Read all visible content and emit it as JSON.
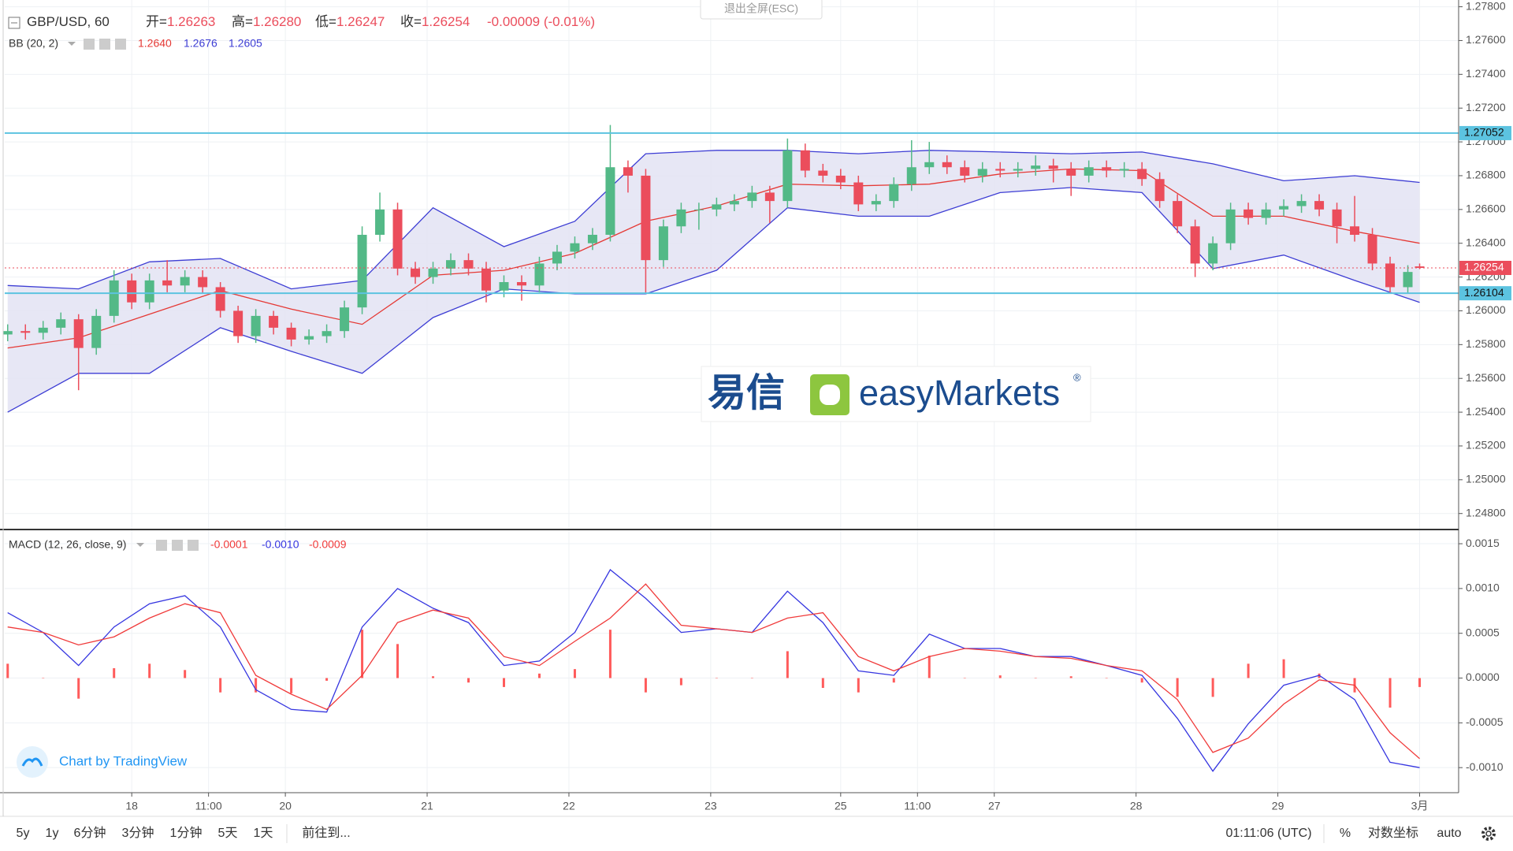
{
  "chart_data": [
    {
      "type": "candlestick",
      "title": "GBP/USD, 60",
      "ohlc_names": [
        "开=",
        "高=",
        "低=",
        "收="
      ],
      "change": "-0.00009 (-0.01%)",
      "up_color": "#53b987",
      "down_color": "#eb4d5c",
      "x": [
        0,
        3,
        6,
        9,
        12,
        15,
        18,
        21,
        24,
        27,
        30,
        33,
        36,
        39,
        42,
        45,
        48,
        51,
        54,
        57,
        60,
        63,
        66,
        69,
        72,
        75,
        78,
        81,
        84,
        87,
        90,
        93,
        96,
        99,
        102,
        105,
        108,
        111,
        114,
        117,
        120,
        123,
        126,
        129,
        132,
        135,
        138,
        141,
        144,
        147,
        150,
        153,
        156,
        159,
        162,
        165,
        168,
        171,
        174,
        177,
        180,
        183,
        186,
        189,
        192,
        195,
        198,
        201,
        204,
        207,
        210,
        213,
        216,
        219,
        222,
        225,
        228,
        231,
        234,
        237,
        239
      ],
      "ohlc": [
        [
          1.2586,
          1.2592,
          1.2582,
          1.2588
        ],
        [
          1.2588,
          1.2592,
          1.2583,
          1.2587
        ],
        [
          1.2587,
          1.2594,
          1.2583,
          1.259
        ],
        [
          1.259,
          1.2599,
          1.2586,
          1.2595
        ],
        [
          1.2595,
          1.2598,
          1.2553,
          1.2578
        ],
        [
          1.2578,
          1.2601,
          1.2574,
          1.2597
        ],
        [
          1.2597,
          1.2624,
          1.2593,
          1.2618
        ],
        [
          1.2618,
          1.2622,
          1.2601,
          1.2605
        ],
        [
          1.2605,
          1.2622,
          1.2601,
          1.2618
        ],
        [
          1.2618,
          1.263,
          1.2611,
          1.2615
        ],
        [
          1.2615,
          1.2624,
          1.2611,
          1.262
        ],
        [
          1.262,
          1.2624,
          1.261,
          1.2614
        ],
        [
          1.2614,
          1.2617,
          1.2596,
          1.26
        ],
        [
          1.26,
          1.2603,
          1.2581,
          1.2585
        ],
        [
          1.2585,
          1.2601,
          1.2581,
          1.2597
        ],
        [
          1.2597,
          1.26,
          1.2586,
          1.259
        ],
        [
          1.259,
          1.2593,
          1.2579,
          1.2583
        ],
        [
          1.2583,
          1.2589,
          1.258,
          1.2585
        ],
        [
          1.2585,
          1.2592,
          1.2581,
          1.2588
        ],
        [
          1.2588,
          1.2606,
          1.2584,
          1.2602
        ],
        [
          1.2602,
          1.265,
          1.2598,
          1.2645
        ],
        [
          1.2645,
          1.267,
          1.2641,
          1.266
        ],
        [
          1.266,
          1.2664,
          1.2621,
          1.2625
        ],
        [
          1.2625,
          1.2629,
          1.2616,
          1.262
        ],
        [
          1.262,
          1.2629,
          1.2616,
          1.2625
        ],
        [
          1.2625,
          1.2634,
          1.2621,
          1.263
        ],
        [
          1.263,
          1.2634,
          1.2621,
          1.2625
        ],
        [
          1.2625,
          1.2629,
          1.2605,
          1.2612
        ],
        [
          1.2612,
          1.2621,
          1.2608,
          1.2617
        ],
        [
          1.2617,
          1.2621,
          1.2606,
          1.2615
        ],
        [
          1.2615,
          1.2632,
          1.2611,
          1.2628
        ],
        [
          1.2628,
          1.2639,
          1.2624,
          1.2635
        ],
        [
          1.2635,
          1.2644,
          1.2631,
          1.264
        ],
        [
          1.264,
          1.2649,
          1.2636,
          1.2645
        ],
        [
          1.2645,
          1.271,
          1.2641,
          1.2685
        ],
        [
          1.2685,
          1.2689,
          1.267,
          1.268
        ],
        [
          1.268,
          1.2684,
          1.261,
          1.263
        ],
        [
          1.263,
          1.2654,
          1.2626,
          1.265
        ],
        [
          1.265,
          1.2664,
          1.2646,
          1.266
        ],
        [
          1.266,
          1.2664,
          1.2648,
          1.266
        ],
        [
          1.266,
          1.2667,
          1.2656,
          1.2663
        ],
        [
          1.2663,
          1.2669,
          1.2659,
          1.2665
        ],
        [
          1.2665,
          1.2674,
          1.2661,
          1.267
        ],
        [
          1.267,
          1.2674,
          1.2652,
          1.2665
        ],
        [
          1.2665,
          1.2702,
          1.2661,
          1.2695
        ],
        [
          1.2695,
          1.2699,
          1.2679,
          1.2683
        ],
        [
          1.2683,
          1.2687,
          1.2676,
          1.268
        ],
        [
          1.268,
          1.2684,
          1.2672,
          1.2676
        ],
        [
          1.2676,
          1.268,
          1.2659,
          1.2663
        ],
        [
          1.2663,
          1.2669,
          1.2659,
          1.2665
        ],
        [
          1.2665,
          1.2679,
          1.2661,
          1.2675
        ],
        [
          1.2675,
          1.2701,
          1.2671,
          1.2685
        ],
        [
          1.2685,
          1.27,
          1.2681,
          1.2688
        ],
        [
          1.2688,
          1.2692,
          1.2681,
          1.2685
        ],
        [
          1.2685,
          1.2689,
          1.2676,
          1.268
        ],
        [
          1.268,
          1.2688,
          1.2676,
          1.2684
        ],
        [
          1.2684,
          1.2688,
          1.2679,
          1.2683
        ],
        [
          1.2683,
          1.2688,
          1.2679,
          1.2684
        ],
        [
          1.2684,
          1.2692,
          1.268,
          1.2686
        ],
        [
          1.2686,
          1.269,
          1.2676,
          1.2684
        ],
        [
          1.2684,
          1.2688,
          1.2668,
          1.268
        ],
        [
          1.268,
          1.2689,
          1.2676,
          1.2685
        ],
        [
          1.2685,
          1.2689,
          1.2679,
          1.2683
        ],
        [
          1.2683,
          1.2688,
          1.2679,
          1.2684
        ],
        [
          1.2684,
          1.2688,
          1.2674,
          1.2678
        ],
        [
          1.2678,
          1.2682,
          1.2661,
          1.2665
        ],
        [
          1.2665,
          1.2669,
          1.2646,
          1.265
        ],
        [
          1.265,
          1.2654,
          1.262,
          1.2628
        ],
        [
          1.2628,
          1.2644,
          1.2624,
          1.264
        ],
        [
          1.264,
          1.2664,
          1.2636,
          1.266
        ],
        [
          1.266,
          1.2664,
          1.2651,
          1.2655
        ],
        [
          1.2655,
          1.2664,
          1.2651,
          1.266
        ],
        [
          1.266,
          1.2666,
          1.2656,
          1.2662
        ],
        [
          1.2662,
          1.2669,
          1.2658,
          1.2665
        ],
        [
          1.2665,
          1.2669,
          1.2656,
          1.266
        ],
        [
          1.266,
          1.2664,
          1.264,
          1.265
        ],
        [
          1.265,
          1.2668,
          1.2641,
          1.2645
        ],
        [
          1.2645,
          1.2649,
          1.2624,
          1.2628
        ],
        [
          1.2628,
          1.2632,
          1.261,
          1.2614
        ],
        [
          1.2614,
          1.2627,
          1.261,
          1.2623
        ],
        [
          1.26263,
          1.2628,
          1.26247,
          1.26254
        ]
      ],
      "value_labels": {
        "80": {
          "1": "1.26280"
        }
      },
      "bands": {
        "name": "BB (20, 2)",
        "fill": "#e4e4f4",
        "x": [
          0,
          12,
          24,
          36,
          48,
          60,
          72,
          84,
          96,
          108,
          120,
          132,
          144,
          156,
          168,
          180,
          192,
          204,
          216,
          228,
          239
        ],
        "basis": {
          "color": "#e53935",
          "values": [
            1.2578,
            1.2584,
            1.2598,
            1.2612,
            1.2601,
            1.2592,
            1.2621,
            1.2624,
            1.2634,
            1.2653,
            1.2662,
            1.2675,
            1.2674,
            1.2675,
            1.2681,
            1.2684,
            1.2683,
            1.2656,
            1.2656,
            1.2647,
            1.264
          ],
          "value_labels": {
            "20": "1.2640"
          }
        },
        "upper": {
          "color": "#3d3dd4",
          "values": [
            1.2615,
            1.2613,
            1.2629,
            1.2631,
            1.2613,
            1.2618,
            1.2661,
            1.2638,
            1.2653,
            1.2693,
            1.2695,
            1.2695,
            1.2693,
            1.2695,
            1.2694,
            1.2693,
            1.2694,
            1.2687,
            1.2677,
            1.268,
            1.2676
          ]
        },
        "lower": {
          "color": "#3d3dd4",
          "values": [
            1.254,
            1.2563,
            1.2563,
            1.259,
            1.2576,
            1.2563,
            1.2596,
            1.2613,
            1.261,
            1.261,
            1.2624,
            1.2661,
            1.2656,
            1.2656,
            1.267,
            1.2673,
            1.267,
            1.2625,
            1.2633,
            1.2618,
            1.2605
          ]
        }
      },
      "hlines": [
        {
          "value": 1.27052,
          "color": "#5cc3e0"
        },
        {
          "value": 1.26104,
          "color": "#5cc3e0"
        }
      ],
      "last_price_color": "#eb4d5c",
      "xlim": [
        -0.5,
        245.6
      ],
      "ylim": [
        1.2471,
        1.2784
      ],
      "yticks": [
        {
          "value": 1.248,
          "label": "1.24800"
        },
        {
          "value": 1.25,
          "label": "1.25000"
        },
        {
          "value": 1.252,
          "label": "1.25200"
        },
        {
          "value": 1.254,
          "label": "1.25400"
        },
        {
          "value": 1.256,
          "label": "1.25600"
        },
        {
          "value": 1.258,
          "label": "1.25800"
        },
        {
          "value": 1.26,
          "label": "1.26000"
        },
        {
          "value": 1.262,
          "label": "1.26200"
        },
        {
          "value": 1.264,
          "label": "1.26400"
        },
        {
          "value": 1.266,
          "label": "1.26600"
        },
        {
          "value": 1.268,
          "label": "1.26800"
        },
        {
          "value": 1.27,
          "label": "1.27000"
        },
        {
          "value": 1.272,
          "label": "1.27200"
        },
        {
          "value": 1.274,
          "label": "1.27400"
        },
        {
          "value": 1.276,
          "label": "1.27600"
        },
        {
          "value": 1.278,
          "label": "1.27800"
        }
      ],
      "xticks": [
        {
          "value": 21,
          "label": "18"
        },
        {
          "value": 34,
          "label": "11:00"
        },
        {
          "value": 47,
          "label": "20"
        },
        {
          "value": 71,
          "label": "21"
        },
        {
          "value": 95,
          "label": "22"
        },
        {
          "value": 119,
          "label": "23"
        },
        {
          "value": 141,
          "label": "25"
        },
        {
          "value": 154,
          "label": "11:00"
        },
        {
          "value": 167,
          "label": "27"
        },
        {
          "value": 191,
          "label": "28"
        },
        {
          "value": 215,
          "label": "29"
        },
        {
          "value": 239,
          "label": "3月"
        }
      ],
      "grid": true
    },
    {
      "type": "macd",
      "title": "MACD (12, 26, close, 9)",
      "x": [
        0,
        6,
        12,
        18,
        24,
        30,
        36,
        42,
        48,
        54,
        60,
        66,
        72,
        78,
        84,
        90,
        96,
        102,
        108,
        114,
        120,
        126,
        132,
        138,
        144,
        150,
        156,
        162,
        168,
        174,
        180,
        186,
        192,
        198,
        204,
        210,
        216,
        222,
        228,
        234,
        239
      ],
      "histogram": {
        "color": "#ff5b5b",
        "values": [
          0.00016,
          0,
          -0.00023,
          0.00011,
          0.00016,
          9e-05,
          -0.00016,
          -0.00016,
          -0.00017,
          -3e-05,
          0.00054,
          0.00038,
          2e-05,
          -5e-05,
          -0.0001,
          5e-05,
          0.0001,
          0.00054,
          -0.00016,
          -8e-05,
          0,
          0,
          0.0003,
          -0.00011,
          -0.00016,
          -5e-05,
          0.00025,
          0,
          3e-05,
          0,
          2e-05,
          0,
          -5e-05,
          -0.00021,
          -0.00021,
          0.00016,
          0.00021,
          5e-05,
          -0.00016,
          -0.00033,
          -0.0001
        ]
      },
      "macd": {
        "color": "#3535e0",
        "values": [
          0.00073,
          0.00051,
          0.00014,
          0.00057,
          0.00083,
          0.00092,
          0.00057,
          -0.00013,
          -0.00035,
          -0.00038,
          0.00057,
          0.001,
          0.00078,
          0.00062,
          0.00014,
          0.00019,
          0.00051,
          0.00121,
          0.00089,
          0.00051,
          0.00055,
          0.00051,
          0.00097,
          0.00062,
          8e-05,
          3e-05,
          0.00049,
          0.00033,
          0.00033,
          0.00024,
          0.00024,
          0.00014,
          3e-05,
          -0.00045,
          -0.00104,
          -0.00051,
          -8e-05,
          3e-05,
          -0.00024,
          -0.00094,
          -0.001
        ],
        "value_labels": {
          "40": "-0.0010"
        }
      },
      "signal": {
        "color": "#f03a3a",
        "values": [
          0.00057,
          0.00051,
          0.00037,
          0.00046,
          0.00067,
          0.00083,
          0.00073,
          3e-05,
          -0.00018,
          -0.00035,
          3e-05,
          0.00062,
          0.00076,
          0.00067,
          0.00024,
          0.00014,
          0.00041,
          0.00067,
          0.00105,
          0.00059,
          0.00055,
          0.00051,
          0.00067,
          0.00073,
          0.00024,
          8e-05,
          0.00024,
          0.00033,
          0.0003,
          0.00024,
          0.00022,
          0.00014,
          8e-05,
          -0.00024,
          -0.00083,
          -0.00067,
          -0.00029,
          -2e-05,
          -8e-05,
          -0.00061,
          -0.0009
        ]
      },
      "ylim": [
        -0.00128,
        0.00165
      ],
      "yticks": [
        0.0015,
        {
          "value": 0.001,
          "label": "0.0010"
        },
        0.0005,
        {
          "value": 0,
          "label": "0.0000"
        },
        -0.0005,
        {
          "value": -0.001,
          "label": "-0.0010"
        }
      ],
      "grid": true
    }
  ],
  "exit_button": "退出全屏(ESC)",
  "watermark": {
    "cn": "易信",
    "brand": "easyMarkets",
    "mark": "®"
  },
  "credit": "Chart by TradingView",
  "toolbar": {
    "periods": [
      "5y",
      "1y",
      "6分钟",
      "3分钟",
      "1分钟",
      "5天",
      "1天"
    ],
    "goto": "前往到...",
    "time": "01:11:06 (UTC)",
    "percent": "%",
    "log": "对数坐标",
    "auto": "auto"
  }
}
